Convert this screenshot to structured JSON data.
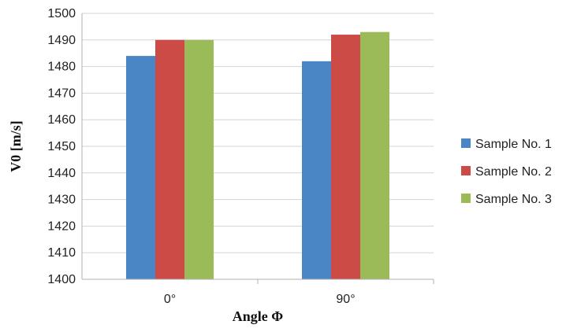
{
  "chart_data": {
    "type": "bar",
    "title": "",
    "xlabel": "Angle Φ",
    "ylabel": "V0 [m/s]",
    "categories": [
      "0°",
      "90°"
    ],
    "series": [
      {
        "name": "Sample No. 1",
        "color": "#4a86c5",
        "values": [
          1484,
          1482
        ]
      },
      {
        "name": "Sample No. 2",
        "color": "#cc4b47",
        "values": [
          1490,
          1492
        ]
      },
      {
        "name": "Sample No. 3",
        "color": "#9bbb59",
        "values": [
          1490,
          1493
        ]
      }
    ],
    "ylim": [
      1400,
      1500
    ],
    "yticks": [
      1400,
      1410,
      1420,
      1430,
      1440,
      1450,
      1460,
      1470,
      1480,
      1490,
      1500
    ],
    "grid": true,
    "legend_position": "right"
  }
}
